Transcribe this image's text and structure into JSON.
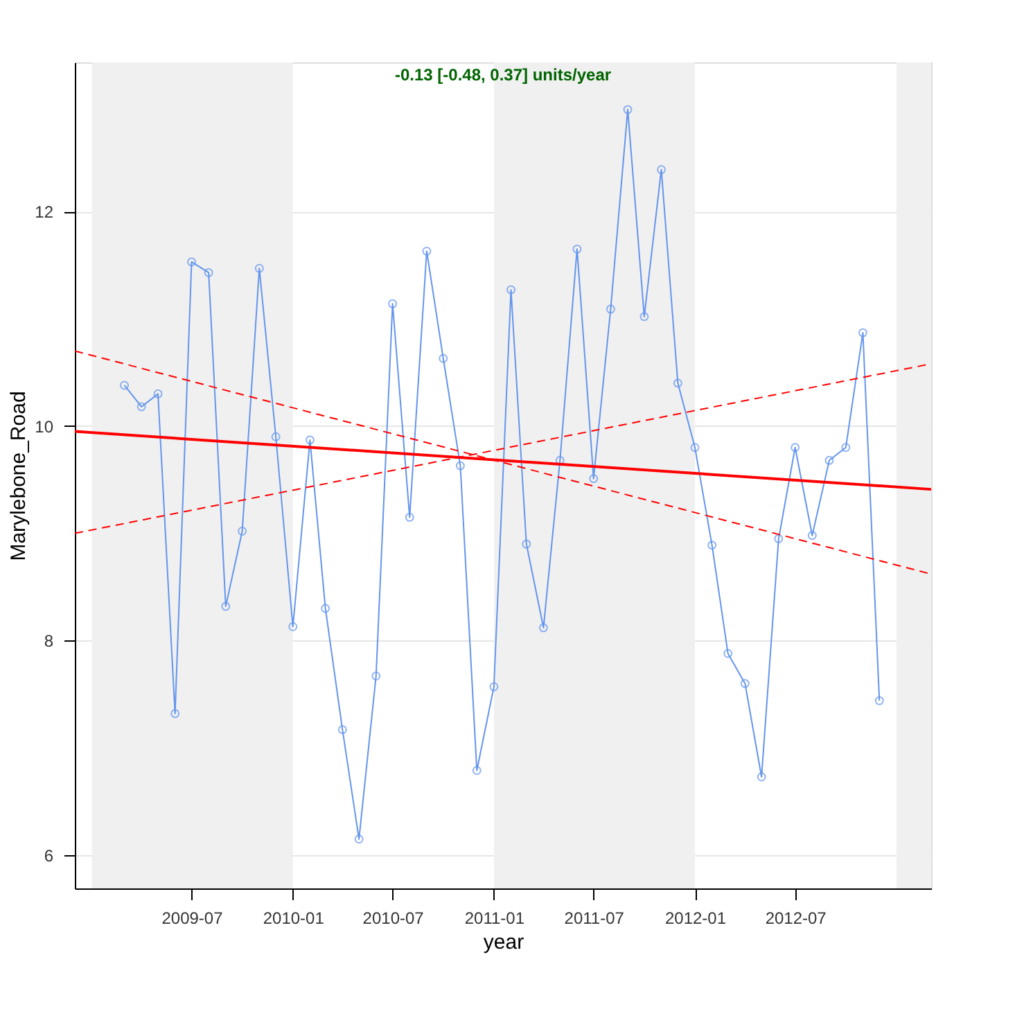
{
  "chart_data": {
    "type": "line",
    "xlabel": "year",
    "ylabel": "Marylebone_Road",
    "annotations": [
      "-0.13 [-0.48, 0.37] units/year"
    ],
    "x": [
      "2009-03",
      "2009-04",
      "2009-05",
      "2009-06",
      "2009-07",
      "2009-08",
      "2009-09",
      "2009-10",
      "2009-11",
      "2009-12",
      "2010-01",
      "2010-02",
      "2010-03",
      "2010-04",
      "2010-05",
      "2010-06",
      "2010-07",
      "2010-08",
      "2010-09",
      "2010-10",
      "2010-11",
      "2010-12",
      "2011-01",
      "2011-02",
      "2011-03",
      "2011-04",
      "2011-05",
      "2011-06",
      "2011-07",
      "2011-08",
      "2011-09",
      "2011-10",
      "2011-11",
      "2011-12",
      "2012-01",
      "2012-02",
      "2012-03",
      "2012-04",
      "2012-05",
      "2012-06",
      "2012-07",
      "2012-08",
      "2012-09",
      "2012-10",
      "2012-11",
      "2012-12"
    ],
    "series": [
      {
        "color": "#6495ed",
        "marker": "circle",
        "line_style": "solid",
        "values": [
          10.38,
          10.18,
          10.3,
          7.32,
          11.53,
          11.43,
          8.32,
          9.02,
          11.47,
          9.9,
          8.13,
          9.87,
          8.3,
          7.17,
          6.15,
          7.67,
          11.14,
          9.15,
          11.63,
          10.63,
          9.63,
          6.79,
          7.57,
          11.27,
          8.9,
          8.12,
          9.68,
          11.65,
          9.51,
          11.09,
          12.95,
          11.02,
          12.39,
          10.4,
          9.8,
          8.89,
          7.88,
          7.6,
          6.73,
          8.95,
          9.8,
          8.98,
          9.68,
          9.8,
          10.87,
          7.44
        ]
      },
      {
        "color": "#ff0000",
        "marker": "none",
        "line_style": "solid",
        "x": [
          "2008-12-01",
          "2013-03-05"
        ],
        "values": [
          9.95,
          9.41
        ]
      },
      {
        "color": "#ff0000",
        "marker": "none",
        "line_style": "dashed",
        "x": [
          "2008-12-01",
          "2013-03-05"
        ],
        "values": [
          10.7,
          8.62
        ]
      },
      {
        "color": "#ff0000",
        "marker": "none",
        "line_style": "dashed",
        "x": [
          "2008-12-01",
          "2013-03-05"
        ],
        "values": [
          9.0,
          10.58
        ]
      }
    ],
    "bands": [
      {
        "axis": "x",
        "from": "2009-01",
        "to": "2010-01",
        "color": "#f0f0f0"
      },
      {
        "axis": "x",
        "from": "2011-01",
        "to": "2012-01",
        "color": "#f0f0f0"
      },
      {
        "axis": "x",
        "from": "2013-01",
        "to": "2013-03-05",
        "color": "#f0f0f0"
      }
    ],
    "xlim": [
      "2008-12-01",
      "2013-03-05"
    ],
    "xticks": [
      "2009-07",
      "2010-01",
      "2010-07",
      "2011-01",
      "2011-07",
      "2012-01",
      "2012-07"
    ],
    "ylim": [
      5.69,
      13.39
    ],
    "yticks": [
      6,
      8,
      10,
      12
    ],
    "grid": "y"
  }
}
